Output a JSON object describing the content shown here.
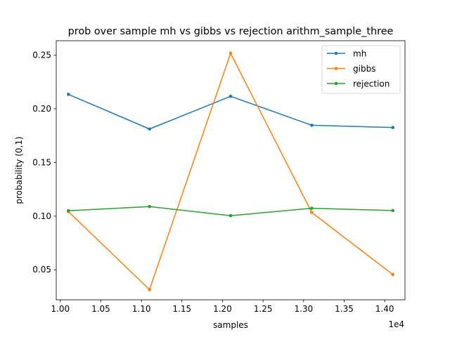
{
  "chart_data": {
    "type": "line",
    "title": "prob over sample mh vs gibbs vs rejection arithm_sample_three",
    "xlabel": "samples",
    "ylabel": "probability (0,1)",
    "x_offset_label": "1e4",
    "x": [
      10100,
      11100,
      12100,
      13100,
      14100
    ],
    "xlim": [
      9950,
      14250
    ],
    "ylim": [
      0.022,
      0.2635
    ],
    "x_ticks": [
      10000,
      10500,
      11000,
      11500,
      12000,
      12500,
      13000,
      13500,
      14000
    ],
    "x_tick_labels": [
      "1.00",
      "1.05",
      "1.10",
      "1.15",
      "1.20",
      "1.25",
      "1.30",
      "1.35",
      "1.40"
    ],
    "y_ticks": [
      0.05,
      0.1,
      0.15,
      0.2,
      0.25
    ],
    "y_tick_labels": [
      "0.05",
      "0.10",
      "0.15",
      "0.20",
      "0.25"
    ],
    "grid": false,
    "legend_position": "top-right",
    "series": [
      {
        "name": "mh",
        "color": "#1f77b4",
        "values": [
          0.2135,
          0.1812,
          0.2117,
          0.1847,
          0.1826
        ]
      },
      {
        "name": "gibbs",
        "color": "#ff7f0e",
        "values": [
          0.1042,
          0.0315,
          0.2518,
          0.1034,
          0.0456
        ]
      },
      {
        "name": "rejection",
        "color": "#2ca02c",
        "values": [
          0.105,
          0.1089,
          0.1004,
          0.1073,
          0.1052
        ]
      }
    ]
  }
}
